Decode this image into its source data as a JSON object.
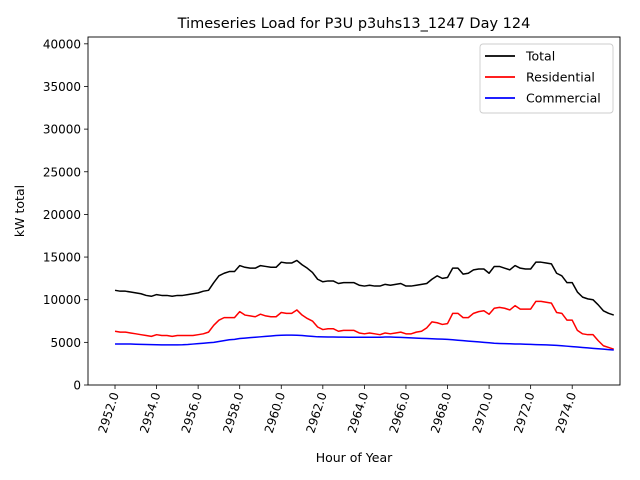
{
  "chart_data": {
    "type": "line",
    "title": "Timeseries Load for P3U p3uhs13_1247  Day 124",
    "xlabel": "Hour of Year",
    "ylabel": "kW total",
    "xlim": [
      2950.7,
      2976.3
    ],
    "ylim": [
      0,
      40800
    ],
    "xticks": [
      2952,
      2954,
      2956,
      2958,
      2960,
      2962,
      2964,
      2966,
      2968,
      2970,
      2972,
      2974
    ],
    "xtick_labels": [
      "2952.0",
      "2954.0",
      "2956.0",
      "2958.0",
      "2960.0",
      "2962.0",
      "2964.0",
      "2966.0",
      "2968.0",
      "2970.0",
      "2972.0",
      "2974.0"
    ],
    "yticks": [
      0,
      5000,
      10000,
      15000,
      20000,
      25000,
      30000,
      35000,
      40000
    ],
    "ytick_labels": [
      "0",
      "5000",
      "10000",
      "15000",
      "20000",
      "25000",
      "30000",
      "35000",
      "40000"
    ],
    "legend_position": "top-right",
    "x_start": 2952.0,
    "x_step": 0.25,
    "series": [
      {
        "name": "Total",
        "color": "#000000",
        "values": [
          11100,
          11000,
          11000,
          10900,
          10800,
          10700,
          10500,
          10400,
          10600,
          10500,
          10500,
          10400,
          10500,
          10500,
          10600,
          10700,
          10800,
          11000,
          11100,
          12000,
          12800,
          13100,
          13300,
          13300,
          14000,
          13800,
          13700,
          13700,
          14000,
          13900,
          13800,
          13800,
          14400,
          14300,
          14300,
          14600,
          14100,
          13700,
          13200,
          12400,
          12100,
          12200,
          12200,
          11900,
          12000,
          12000,
          12000,
          11700,
          11600,
          11700,
          11600,
          11600,
          11800,
          11700,
          11800,
          11900,
          11600,
          11600,
          11700,
          11800,
          11900,
          12400,
          12800,
          12500,
          12600,
          13700,
          13700,
          13000,
          13100,
          13500,
          13600,
          13600,
          13100,
          13900,
          13900,
          13700,
          13500,
          14000,
          13700,
          13600,
          13600,
          14400,
          14400,
          14300,
          14200,
          13100,
          12800,
          12000,
          12000,
          10900,
          10300,
          10100,
          10000,
          9400,
          8700,
          8400,
          8200
        ]
      },
      {
        "name": "Residential",
        "color": "#ff0000",
        "values": [
          6300,
          6200,
          6200,
          6100,
          6000,
          5900,
          5800,
          5700,
          5900,
          5800,
          5800,
          5700,
          5800,
          5800,
          5800,
          5800,
          5900,
          6000,
          6200,
          7000,
          7600,
          7900,
          7900,
          7900,
          8600,
          8200,
          8100,
          8000,
          8300,
          8100,
          8000,
          8000,
          8500,
          8400,
          8400,
          8800,
          8200,
          7800,
          7500,
          6800,
          6500,
          6600,
          6600,
          6300,
          6400,
          6400,
          6400,
          6100,
          6000,
          6100,
          6000,
          5900,
          6100,
          6000,
          6100,
          6200,
          6000,
          6000,
          6200,
          6300,
          6700,
          7400,
          7300,
          7100,
          7200,
          8400,
          8400,
          7900,
          7900,
          8400,
          8600,
          8700,
          8300,
          9000,
          9100,
          9000,
          8800,
          9300,
          8900,
          8900,
          8900,
          9800,
          9800,
          9700,
          9600,
          8500,
          8400,
          7600,
          7600,
          6400,
          6000,
          5900,
          5900,
          5200,
          4600,
          4400,
          4200
        ]
      },
      {
        "name": "Commercial",
        "color": "#0000ff",
        "values": [
          4800,
          4800,
          4800,
          4800,
          4780,
          4760,
          4750,
          4730,
          4720,
          4710,
          4700,
          4700,
          4710,
          4720,
          4750,
          4800,
          4850,
          4900,
          4950,
          5000,
          5100,
          5200,
          5300,
          5350,
          5450,
          5500,
          5550,
          5600,
          5650,
          5700,
          5750,
          5800,
          5830,
          5850,
          5850,
          5830,
          5800,
          5750,
          5700,
          5650,
          5640,
          5630,
          5620,
          5610,
          5610,
          5600,
          5600,
          5600,
          5600,
          5600,
          5600,
          5600,
          5620,
          5620,
          5600,
          5580,
          5550,
          5530,
          5500,
          5470,
          5450,
          5420,
          5400,
          5380,
          5350,
          5300,
          5250,
          5200,
          5150,
          5100,
          5050,
          5000,
          4950,
          4900,
          4870,
          4850,
          4830,
          4800,
          4800,
          4780,
          4760,
          4740,
          4720,
          4700,
          4680,
          4650,
          4600,
          4550,
          4500,
          4450,
          4400,
          4350,
          4300,
          4250,
          4200,
          4150,
          4100
        ]
      }
    ]
  }
}
